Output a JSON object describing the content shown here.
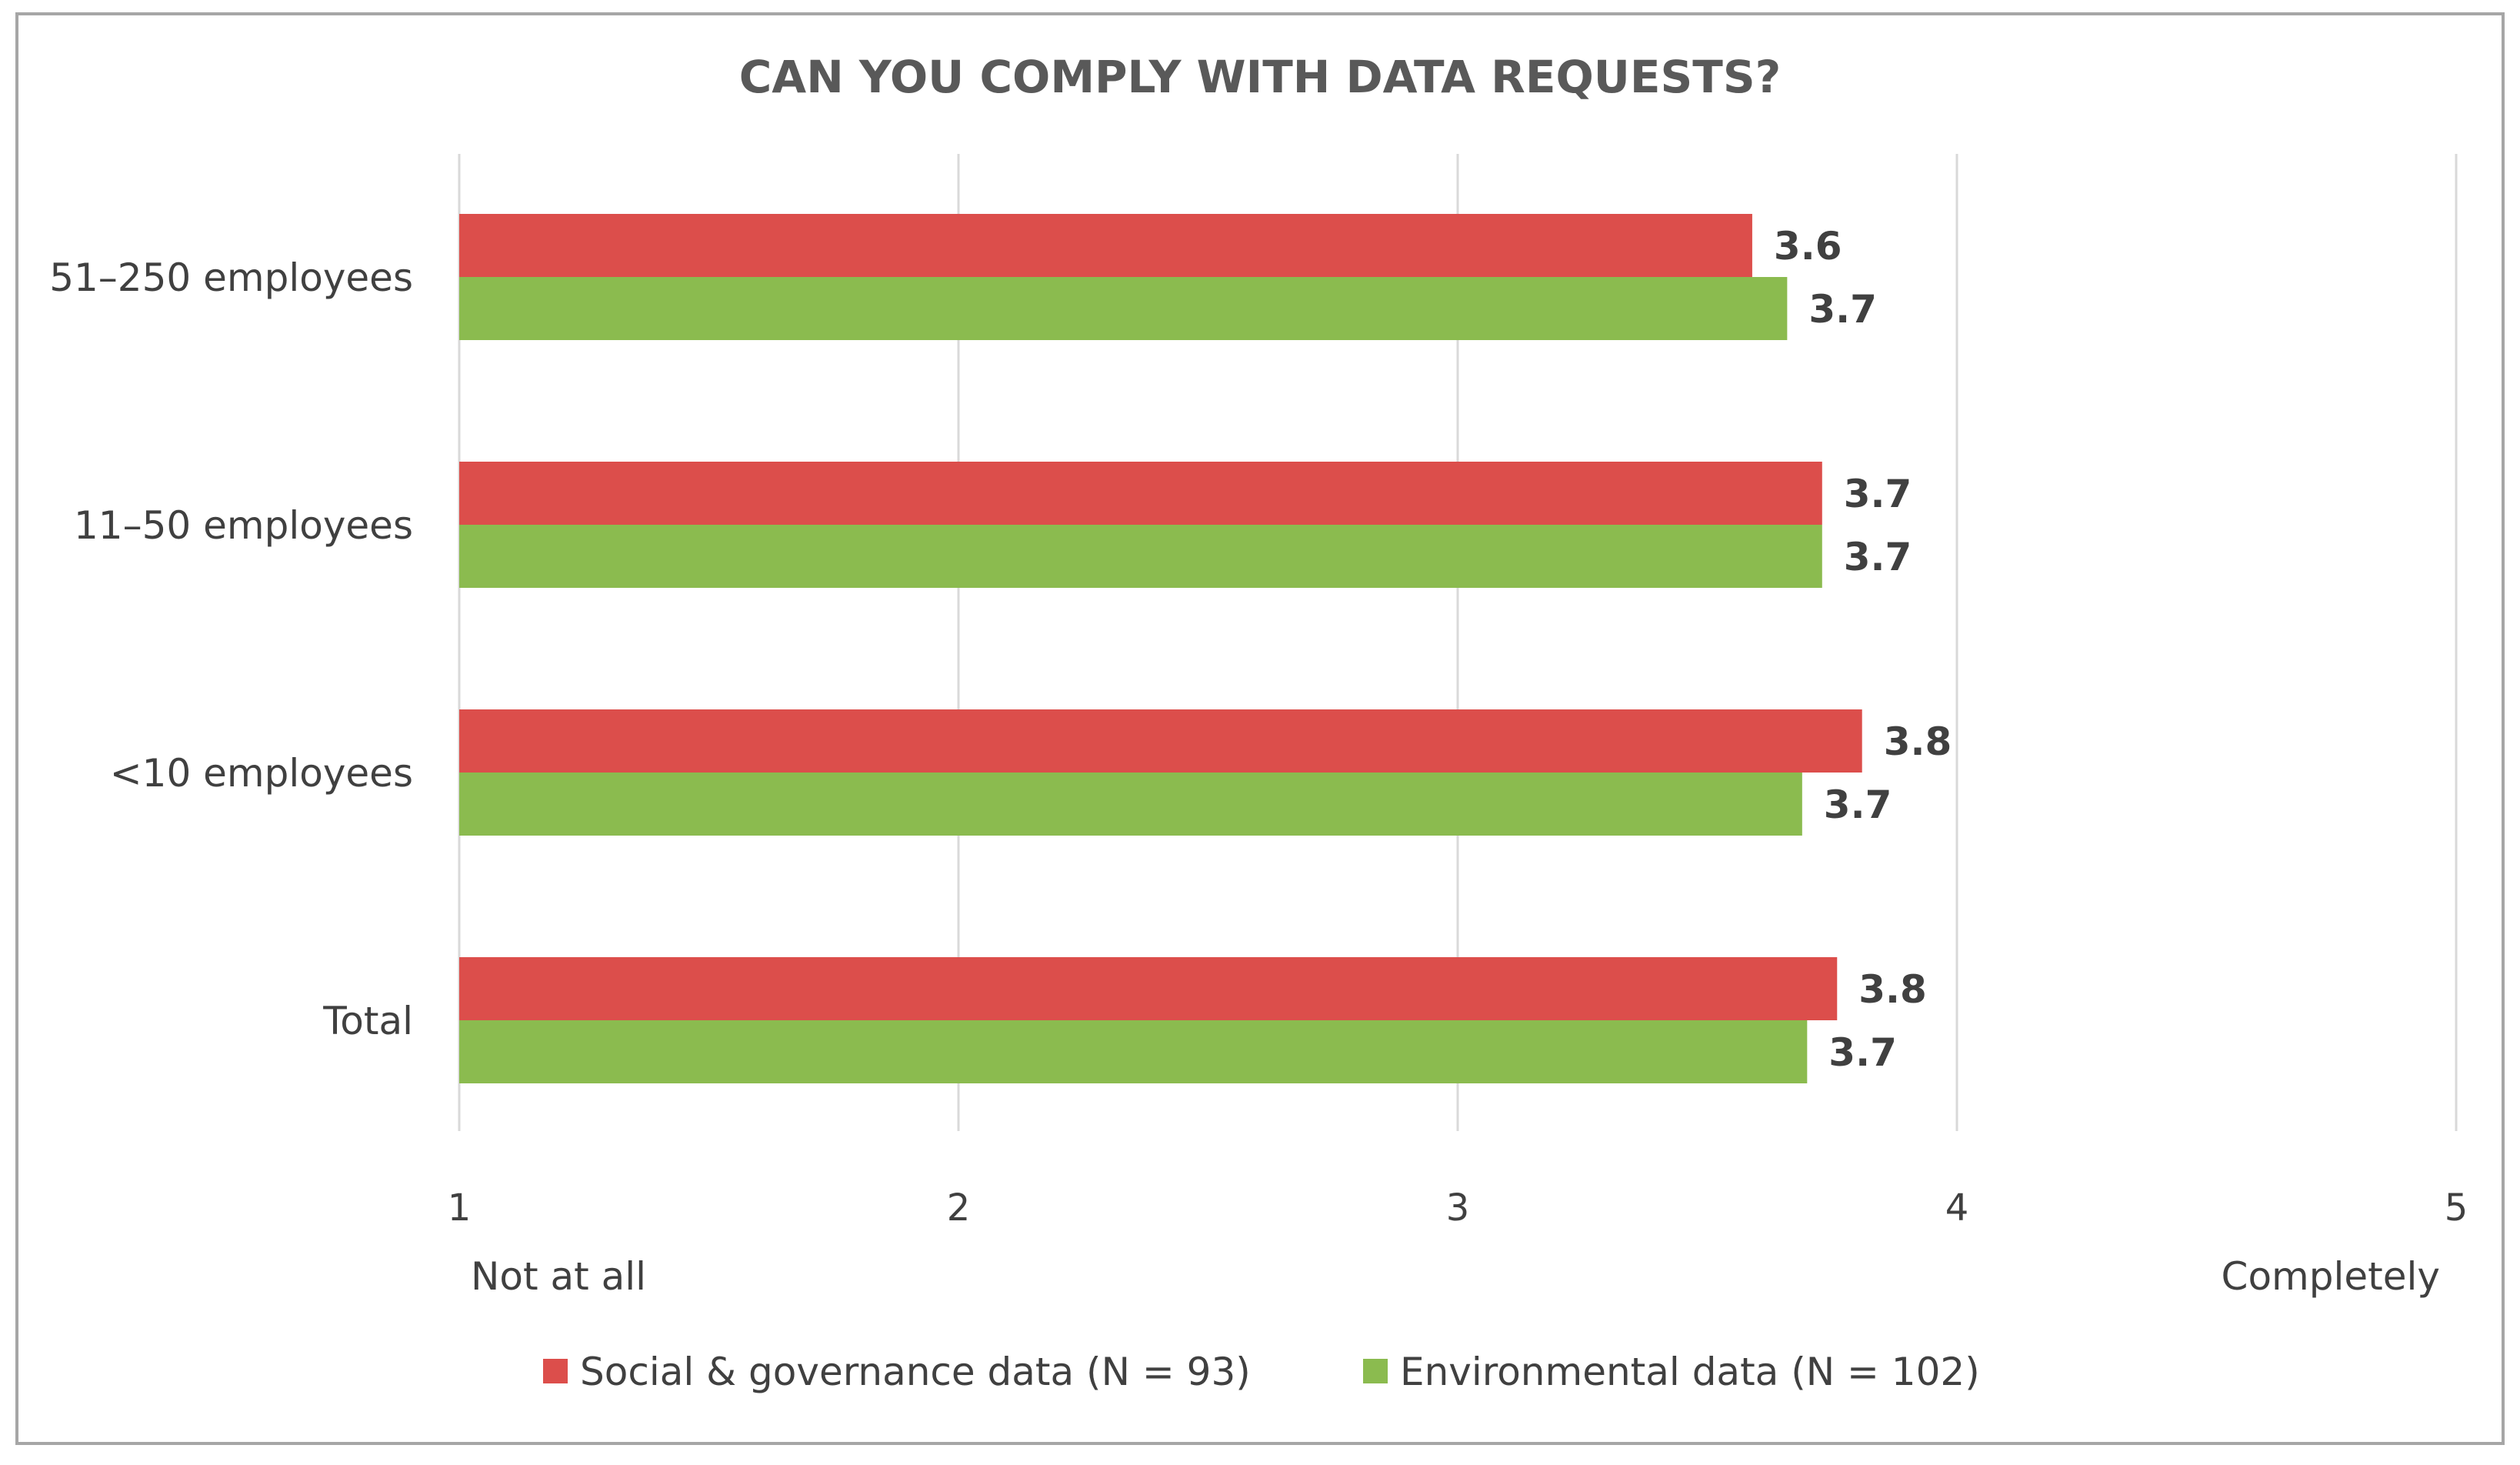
{
  "chart_data": {
    "type": "bar",
    "orientation": "horizontal",
    "title": "CAN YOU COMPLY WITH DATA REQUESTS?",
    "categories": [
      "51–250 employees",
      "11–50 employees",
      "<10 employees",
      "Total"
    ],
    "series": [
      {
        "name": "Social & governance data (N = 93)",
        "color": "#dc4e4b",
        "values": [
          3.59,
          3.73,
          3.81,
          3.76
        ],
        "labels": [
          "3.6",
          "3.7",
          "3.8",
          "3.8"
        ]
      },
      {
        "name": "Environmental data (N = 102)",
        "color": "#8bbb4f",
        "values": [
          3.66,
          3.73,
          3.69,
          3.7
        ],
        "labels": [
          "3.7",
          "3.7",
          "3.7",
          "3.7"
        ]
      }
    ],
    "xlim": [
      1,
      5
    ],
    "xticks": [
      "1",
      "2",
      "3",
      "4",
      "5"
    ],
    "xmin_label": "Not at all",
    "xmax_label": "Completely",
    "grid": "vertical",
    "legend_position": "bottom"
  }
}
